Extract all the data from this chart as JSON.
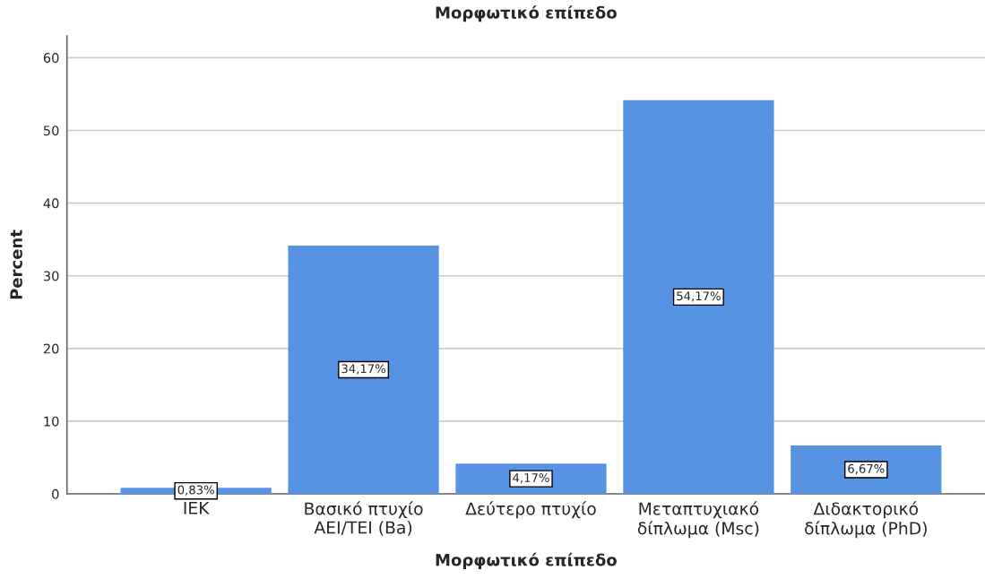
{
  "chart_data": {
    "type": "bar",
    "title": "Μορφωτικό επίπεδο",
    "xlabel": "Μορφωτικό επίπεδο",
    "ylabel": "Percent",
    "categories": [
      "ΙΕΚ",
      "Βασικό πτυχίο\nΑΕΙ/ΤΕΙ (Ba)",
      "Δεύτερο πτυχίο",
      "Μεταπτυχιακό\nδίπλωμα (Msc)",
      "Διδακτορικό\nδίπλωμα (PhD)"
    ],
    "values": [
      0.83,
      34.17,
      4.17,
      54.17,
      6.67
    ],
    "value_labels": [
      "0,83%",
      "34,17%",
      "4,17%",
      "54,17%",
      "6,67%"
    ],
    "color": "#5694e3",
    "ylim": [
      0,
      63
    ],
    "yticks": [
      0,
      10,
      20,
      30,
      40,
      50,
      60
    ],
    "grid": "y"
  }
}
